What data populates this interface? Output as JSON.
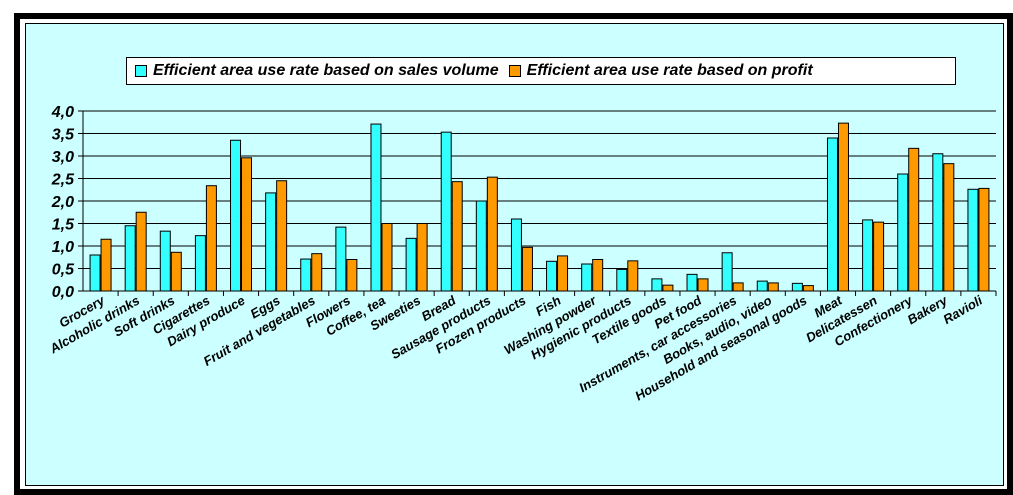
{
  "colors": {
    "series1": "#33ffff",
    "series2": "#ff9900",
    "background": "#ccffff",
    "frame": "#000000"
  },
  "chart_data": {
    "type": "bar",
    "title": "",
    "xlabel": "",
    "ylabel": "",
    "ylim": [
      0,
      4.0
    ],
    "y_ticks": [
      "0,0",
      "0,5",
      "1,0",
      "1,5",
      "2,0",
      "2,5",
      "3,0",
      "3,5",
      "4,0"
    ],
    "grid": true,
    "legend_position": "top",
    "categories": [
      "Grocery",
      "Alcoholic drinks",
      "Soft drinks",
      "Cigarettes",
      "Dairy produce",
      "Eggs",
      "Fruit and vegetables",
      "Flowers",
      "Coffee, tea",
      "Sweeties",
      "Bread",
      "Sausage products",
      "Frozen products",
      "Fish",
      "Washing powder",
      "Hygienic products",
      "Textile goods",
      "Pet food",
      "Instruments, car accessories",
      "Books, audio, video",
      "Household and seasonal goods",
      "Meat",
      "Delicatessen",
      "Confectionery",
      "Bakery",
      "Ravioli"
    ],
    "series": [
      {
        "name": "Efficient area use rate based on sales volume",
        "values": [
          0.8,
          1.45,
          1.33,
          1.23,
          3.35,
          2.18,
          0.71,
          1.42,
          3.71,
          1.17,
          3.53,
          2.0,
          1.6,
          0.66,
          0.6,
          0.48,
          0.27,
          0.37,
          0.85,
          0.22,
          0.17,
          3.4,
          1.58,
          2.6,
          3.05,
          2.26
        ]
      },
      {
        "name": "Efficient area use rate based on profit",
        "values": [
          1.15,
          1.75,
          0.86,
          2.34,
          2.96,
          2.45,
          0.83,
          0.7,
          1.5,
          1.5,
          2.43,
          2.53,
          0.97,
          0.78,
          0.7,
          0.67,
          0.13,
          0.27,
          0.18,
          0.18,
          0.12,
          3.73,
          1.53,
          3.17,
          2.83,
          2.28
        ]
      }
    ]
  }
}
